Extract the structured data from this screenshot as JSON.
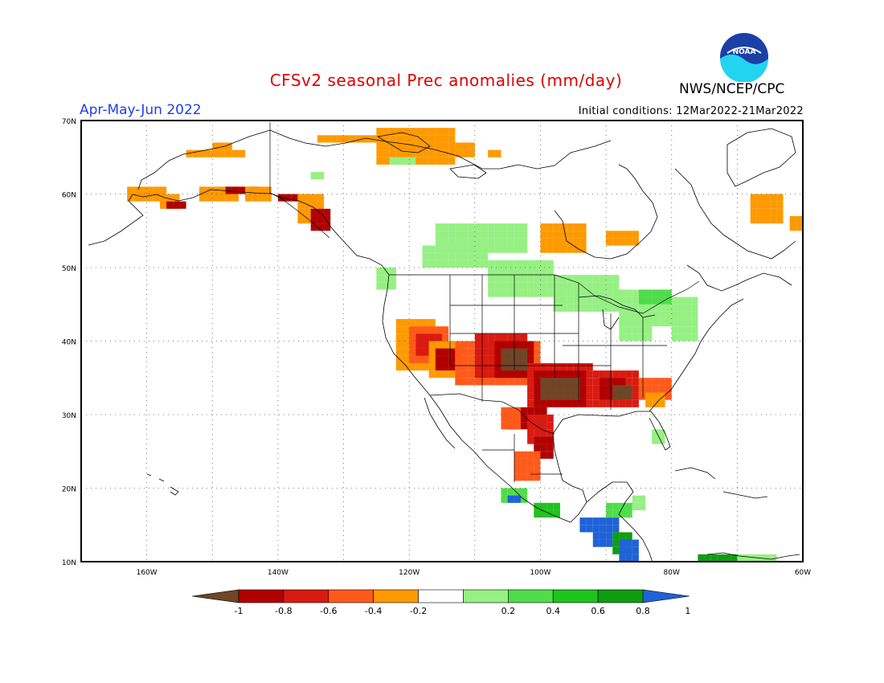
{
  "header": {
    "title": "CFSv2 seasonal Prec anomalies (mm/day)",
    "season": "Apr-May-Jun 2022",
    "initial_conditions": "Initial conditions: 12Mar2022-21Mar2022",
    "agency": "NWS/NCEP/CPC",
    "logo_text": "NOAA"
  },
  "map": {
    "lat_labels": [
      "70N",
      "60N",
      "50N",
      "40N",
      "30N",
      "20N",
      "10N"
    ],
    "lon_labels": [
      "160W",
      "140W",
      "120W",
      "100W",
      "80W",
      "60W"
    ]
  },
  "legend": {
    "ticks": [
      "-1",
      "-0.8",
      "-0.6",
      "-0.4",
      "-0.2",
      "0.2",
      "0.4",
      "0.6",
      "0.8",
      "1"
    ],
    "colors": [
      "#704528",
      "#b10000",
      "#da1a10",
      "#ff5a1a",
      "#ff9900",
      "#ffffff",
      "#96f083",
      "#50dc4a",
      "#1ec31d",
      "#0f9d10",
      "#1f62d8"
    ]
  },
  "colors": {
    "title": "#e00000",
    "season": "#1f3ff0",
    "logo_blue": "#1a3fa6",
    "logo_cyan": "#23d4f0"
  }
}
